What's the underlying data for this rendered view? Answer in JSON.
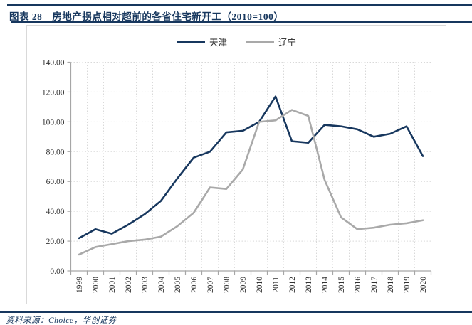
{
  "header": {
    "title": "图表 28　房地产拐点相对超前的各省住宅新开工（2010=100）"
  },
  "footer": {
    "source_label": "资料来源：Choice，华创证券"
  },
  "colors": {
    "accent_navy": "#17375E",
    "series_gray": "#A9A9A9",
    "box_border": "#D9D9D9",
    "grid_dotted": "#D9D9D9",
    "axis_line": "#A6A6A6",
    "tick_text": "#333333"
  },
  "chart_data": {
    "type": "line",
    "title": "房地产拐点相对超前的各省住宅新开工（2010=100）",
    "categories": [
      "1999",
      "2000",
      "2001",
      "2002",
      "2003",
      "2004",
      "2005",
      "2006",
      "2007",
      "2008",
      "2009",
      "2010",
      "2011",
      "2012",
      "2013",
      "2014",
      "2015",
      "2016",
      "2017",
      "2018",
      "2019",
      "2020"
    ],
    "series": [
      {
        "name": "天津",
        "color": "#17375E",
        "values": [
          22,
          28,
          25,
          31,
          38,
          47,
          62,
          76,
          80,
          93,
          94,
          100,
          117,
          87,
          86,
          98,
          97,
          95,
          90,
          92,
          97,
          77
        ]
      },
      {
        "name": "辽宁",
        "color": "#A9A9A9",
        "values": [
          11,
          16,
          18,
          20,
          21,
          23,
          30,
          39,
          56,
          55,
          68,
          100,
          101,
          108,
          104,
          61,
          36,
          28,
          29,
          31,
          32,
          34
        ]
      }
    ],
    "xlabel": "",
    "ylabel": "",
    "ylim": [
      0,
      140
    ],
    "ytick_step": 20,
    "ytick_labels": [
      "0.00",
      "20.00",
      "40.00",
      "60.00",
      "80.00",
      "100.00",
      "120.00",
      "140.00"
    ],
    "x_tick_rotation_deg": 90,
    "grid": "dotted horizontal and vertical",
    "legend_position": "top-center"
  }
}
